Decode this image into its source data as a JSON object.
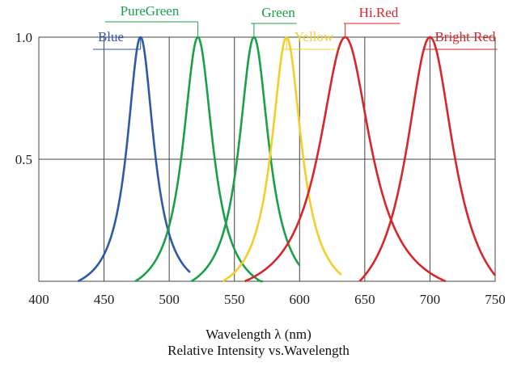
{
  "chart_data": {
    "type": "line",
    "xlabel": "Wavelength λ (nm)",
    "subtitle": "Relative Intensity vs.Wavelength",
    "xlim": [
      400,
      750
    ],
    "ylim": [
      0,
      1.0
    ],
    "x_ticks": [
      400,
      450,
      500,
      550,
      600,
      650,
      700,
      750
    ],
    "y_ticks": [
      {
        "value": 0.5,
        "label": "0.5"
      },
      {
        "value": 1.0,
        "label": "1.0"
      }
    ],
    "grid": true,
    "series": [
      {
        "name": "Blue",
        "color": "#2e5aa8",
        "peak": 478,
        "width": 25,
        "min": 430,
        "max": 516
      },
      {
        "name": "PureGreen",
        "color": "#1aa048",
        "peak": 522,
        "width": 28,
        "min": 474,
        "max": 572
      },
      {
        "name": "Green",
        "color": "#1aa048",
        "peak": 565,
        "width": 28,
        "min": 517,
        "max": 600
      },
      {
        "name": "Yellow",
        "color": "#f4cd2c",
        "peak": 590,
        "width": 28,
        "min": 541,
        "max": 632
      },
      {
        "name": "Hi.Red",
        "color": "#d7262b",
        "peak": 635,
        "width": 48,
        "min": 558,
        "max": 712
      },
      {
        "name": "Bright Red",
        "color": "#d7262b",
        "peak": 700,
        "width": 45,
        "min": 646,
        "max": 750
      }
    ]
  }
}
